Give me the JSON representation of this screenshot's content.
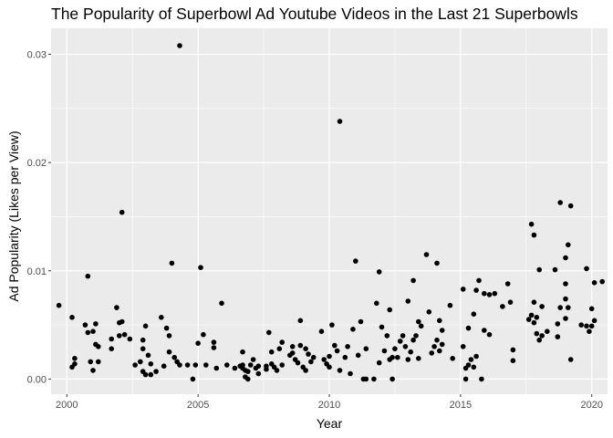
{
  "chart_data": {
    "type": "scatter",
    "title": "The Popularity of Superbowl Ad Youtube Videos in the Last 21 Superbowls",
    "xlabel": "Year",
    "ylabel": "Ad Popularity (Likes per View)",
    "xlim": [
      1999.4,
      2020.6
    ],
    "ylim": [
      -0.0014,
      0.0324
    ],
    "xticks": [
      2000,
      2005,
      2010,
      2015,
      2020
    ],
    "yticks": [
      0.0,
      0.01,
      0.02,
      0.03
    ],
    "ytick_labels": [
      "0.00",
      "0.01",
      "0.02",
      "0.03"
    ],
    "grid": true,
    "background": "#ebebeb",
    "grid_color": "#ffffff",
    "point_color": "#000000",
    "points": [
      [
        1999.7,
        0.0068
      ],
      [
        2000.2,
        0.0057
      ],
      [
        2000.2,
        0.0011
      ],
      [
        2000.3,
        0.0014
      ],
      [
        2000.3,
        0.0019
      ],
      [
        2000.7,
        0.005
      ],
      [
        2000.8,
        0.0043
      ],
      [
        2000.8,
        0.0095
      ],
      [
        2000.9,
        0.0016
      ],
      [
        2001.0,
        0.0044
      ],
      [
        2001.0,
        0.0008
      ],
      [
        2001.1,
        0.0051
      ],
      [
        2001.1,
        0.0032
      ],
      [
        2001.2,
        0.003
      ],
      [
        2001.2,
        0.0016
      ],
      [
        2001.7,
        0.0037
      ],
      [
        2001.7,
        0.0028
      ],
      [
        2001.9,
        0.0066
      ],
      [
        2002.0,
        0.0052
      ],
      [
        2002.0,
        0.004
      ],
      [
        2002.1,
        0.0154
      ],
      [
        2002.1,
        0.0053
      ],
      [
        2002.2,
        0.0041
      ],
      [
        2002.4,
        0.0037
      ],
      [
        2002.6,
        0.0013
      ],
      [
        2002.8,
        0.0016
      ],
      [
        2002.9,
        0.0036
      ],
      [
        2002.9,
        0.0028
      ],
      [
        2002.9,
        0.0007
      ],
      [
        2003.0,
        0.0049
      ],
      [
        2003.0,
        0.0004
      ],
      [
        2003.1,
        0.0022
      ],
      [
        2003.2,
        0.0014
      ],
      [
        2003.2,
        0.0004
      ],
      [
        2003.4,
        0.0007
      ],
      [
        2003.6,
        0.0057
      ],
      [
        2003.7,
        0.0012
      ],
      [
        2003.8,
        0.0047
      ],
      [
        2003.9,
        0.004
      ],
      [
        2003.9,
        0.0025
      ],
      [
        2004.0,
        0.0107
      ],
      [
        2004.1,
        0.002
      ],
      [
        2004.2,
        0.0016
      ],
      [
        2004.3,
        0.0308
      ],
      [
        2004.3,
        0.0013
      ],
      [
        2004.6,
        0.0013
      ],
      [
        2004.8,
        0.0
      ],
      [
        2004.9,
        0.0013
      ],
      [
        2005.0,
        0.0033
      ],
      [
        2005.1,
        0.0103
      ],
      [
        2005.2,
        0.0041
      ],
      [
        2005.3,
        0.0013
      ],
      [
        2005.6,
        0.0034
      ],
      [
        2005.6,
        0.0029
      ],
      [
        2005.7,
        0.001
      ],
      [
        2005.9,
        0.007
      ],
      [
        2006.1,
        0.0013
      ],
      [
        2006.4,
        0.001
      ],
      [
        2006.6,
        0.0012
      ],
      [
        2006.7,
        0.0025
      ],
      [
        2006.7,
        0.0013
      ],
      [
        2006.7,
        0.001
      ],
      [
        2006.8,
        0.0008
      ],
      [
        2006.8,
        0.0002
      ],
      [
        2006.9,
        0.0
      ],
      [
        2006.9,
        0.0007
      ],
      [
        2007.0,
        0.0013
      ],
      [
        2007.1,
        0.0018
      ],
      [
        2007.2,
        0.001
      ],
      [
        2007.3,
        0.0012
      ],
      [
        2007.3,
        0.0005
      ],
      [
        2007.6,
        0.0012
      ],
      [
        2007.6,
        0.0009
      ],
      [
        2007.7,
        0.0043
      ],
      [
        2007.8,
        0.0025
      ],
      [
        2007.8,
        0.0014
      ],
      [
        2007.9,
        0.0011
      ],
      [
        2008.0,
        0.0008
      ],
      [
        2008.1,
        0.0028
      ],
      [
        2008.2,
        0.0034
      ],
      [
        2008.2,
        0.0013
      ],
      [
        2008.5,
        0.0022
      ],
      [
        2008.6,
        0.0024
      ],
      [
        2008.6,
        0.003
      ],
      [
        2008.7,
        0.0018
      ],
      [
        2008.8,
        0.0015
      ],
      [
        2008.9,
        0.0054
      ],
      [
        2008.9,
        0.0031
      ],
      [
        2009.0,
        0.0011
      ],
      [
        2009.1,
        0.0028
      ],
      [
        2009.1,
        0.0008
      ],
      [
        2009.2,
        0.0023
      ],
      [
        2009.3,
        0.0016
      ],
      [
        2009.4,
        0.002
      ],
      [
        2009.7,
        0.0044
      ],
      [
        2009.8,
        0.0018
      ],
      [
        2009.9,
        0.0014
      ],
      [
        2010.0,
        0.0021
      ],
      [
        2010.0,
        0.0011
      ],
      [
        2010.1,
        0.005
      ],
      [
        2010.2,
        0.0031
      ],
      [
        2010.3,
        0.0026
      ],
      [
        2010.4,
        0.0238
      ],
      [
        2010.4,
        0.0008
      ],
      [
        2010.6,
        0.002
      ],
      [
        2010.7,
        0.003
      ],
      [
        2010.8,
        0.0005
      ],
      [
        2010.9,
        0.0046
      ],
      [
        2011.0,
        0.0109
      ],
      [
        2011.1,
        0.0022
      ],
      [
        2011.2,
        0.0053
      ],
      [
        2011.3,
        0.0
      ],
      [
        2011.4,
        0.0028
      ],
      [
        2011.4,
        0.0
      ],
      [
        2011.7,
        0.0
      ],
      [
        2011.8,
        0.007
      ],
      [
        2011.9,
        0.0099
      ],
      [
        2011.9,
        0.0015
      ],
      [
        2012.0,
        0.0048
      ],
      [
        2012.1,
        0.0026
      ],
      [
        2012.2,
        0.004
      ],
      [
        2012.3,
        0.0064
      ],
      [
        2012.3,
        0.0018
      ],
      [
        2012.4,
        0.002
      ],
      [
        2012.4,
        0.0
      ],
      [
        2012.5,
        0.0028
      ],
      [
        2012.6,
        0.002
      ],
      [
        2012.7,
        0.0035
      ],
      [
        2012.8,
        0.004
      ],
      [
        2012.9,
        0.003
      ],
      [
        2013.0,
        0.0072
      ],
      [
        2013.0,
        0.0018
      ],
      [
        2013.1,
        0.0025
      ],
      [
        2013.2,
        0.0091
      ],
      [
        2013.2,
        0.0036
      ],
      [
        2013.3,
        0.004
      ],
      [
        2013.4,
        0.0053
      ],
      [
        2013.4,
        0.0019
      ],
      [
        2013.5,
        0.0049
      ],
      [
        2013.7,
        0.0115
      ],
      [
        2013.8,
        0.0062
      ],
      [
        2013.9,
        0.0024
      ],
      [
        2014.0,
        0.003
      ],
      [
        2014.1,
        0.0107
      ],
      [
        2014.1,
        0.0036
      ],
      [
        2014.2,
        0.0054
      ],
      [
        2014.2,
        0.0026
      ],
      [
        2014.3,
        0.0045
      ],
      [
        2014.3,
        0.0032
      ],
      [
        2014.6,
        0.0068
      ],
      [
        2014.7,
        0.0019
      ],
      [
        2015.1,
        0.0083
      ],
      [
        2015.1,
        0.003
      ],
      [
        2015.2,
        0.001
      ],
      [
        2015.2,
        0.0
      ],
      [
        2015.3,
        0.0047
      ],
      [
        2015.3,
        0.0013
      ],
      [
        2015.4,
        0.0018
      ],
      [
        2015.5,
        0.006
      ],
      [
        2015.5,
        0.0011
      ],
      [
        2015.6,
        0.0082
      ],
      [
        2015.6,
        0.0021
      ],
      [
        2015.7,
        0.0091
      ],
      [
        2015.8,
        0.0
      ],
      [
        2015.9,
        0.0079
      ],
      [
        2015.9,
        0.0045
      ],
      [
        2016.1,
        0.0078
      ],
      [
        2016.1,
        0.0041
      ],
      [
        2016.3,
        0.0079
      ],
      [
        2016.6,
        0.0067
      ],
      [
        2016.8,
        0.0088
      ],
      [
        2016.9,
        0.0071
      ],
      [
        2017.0,
        0.0027
      ],
      [
        2017.0,
        0.0017
      ],
      [
        2017.6,
        0.0055
      ],
      [
        2017.7,
        0.0143
      ],
      [
        2017.7,
        0.0059
      ],
      [
        2017.8,
        0.0133
      ],
      [
        2017.8,
        0.0071
      ],
      [
        2017.8,
        0.0052
      ],
      [
        2017.9,
        0.0057
      ],
      [
        2017.9,
        0.0042
      ],
      [
        2018.0,
        0.0101
      ],
      [
        2018.0,
        0.0036
      ],
      [
        2018.1,
        0.0067
      ],
      [
        2018.1,
        0.004
      ],
      [
        2018.3,
        0.0044
      ],
      [
        2018.6,
        0.0101
      ],
      [
        2018.7,
        0.0051
      ],
      [
        2018.7,
        0.0039
      ],
      [
        2018.8,
        0.0163
      ],
      [
        2018.8,
        0.0066
      ],
      [
        2019.0,
        0.0112
      ],
      [
        2019.0,
        0.0088
      ],
      [
        2019.0,
        0.0074
      ],
      [
        2019.0,
        0.0056
      ],
      [
        2019.1,
        0.0124
      ],
      [
        2019.1,
        0.0066
      ],
      [
        2019.2,
        0.016
      ],
      [
        2019.2,
        0.0018
      ],
      [
        2019.6,
        0.005
      ],
      [
        2019.8,
        0.0102
      ],
      [
        2019.8,
        0.0049
      ],
      [
        2019.9,
        0.0044
      ],
      [
        2020.0,
        0.0065
      ],
      [
        2020.0,
        0.0049
      ],
      [
        2020.1,
        0.0054
      ],
      [
        2020.1,
        0.0089
      ],
      [
        2020.4,
        0.009
      ]
    ]
  }
}
